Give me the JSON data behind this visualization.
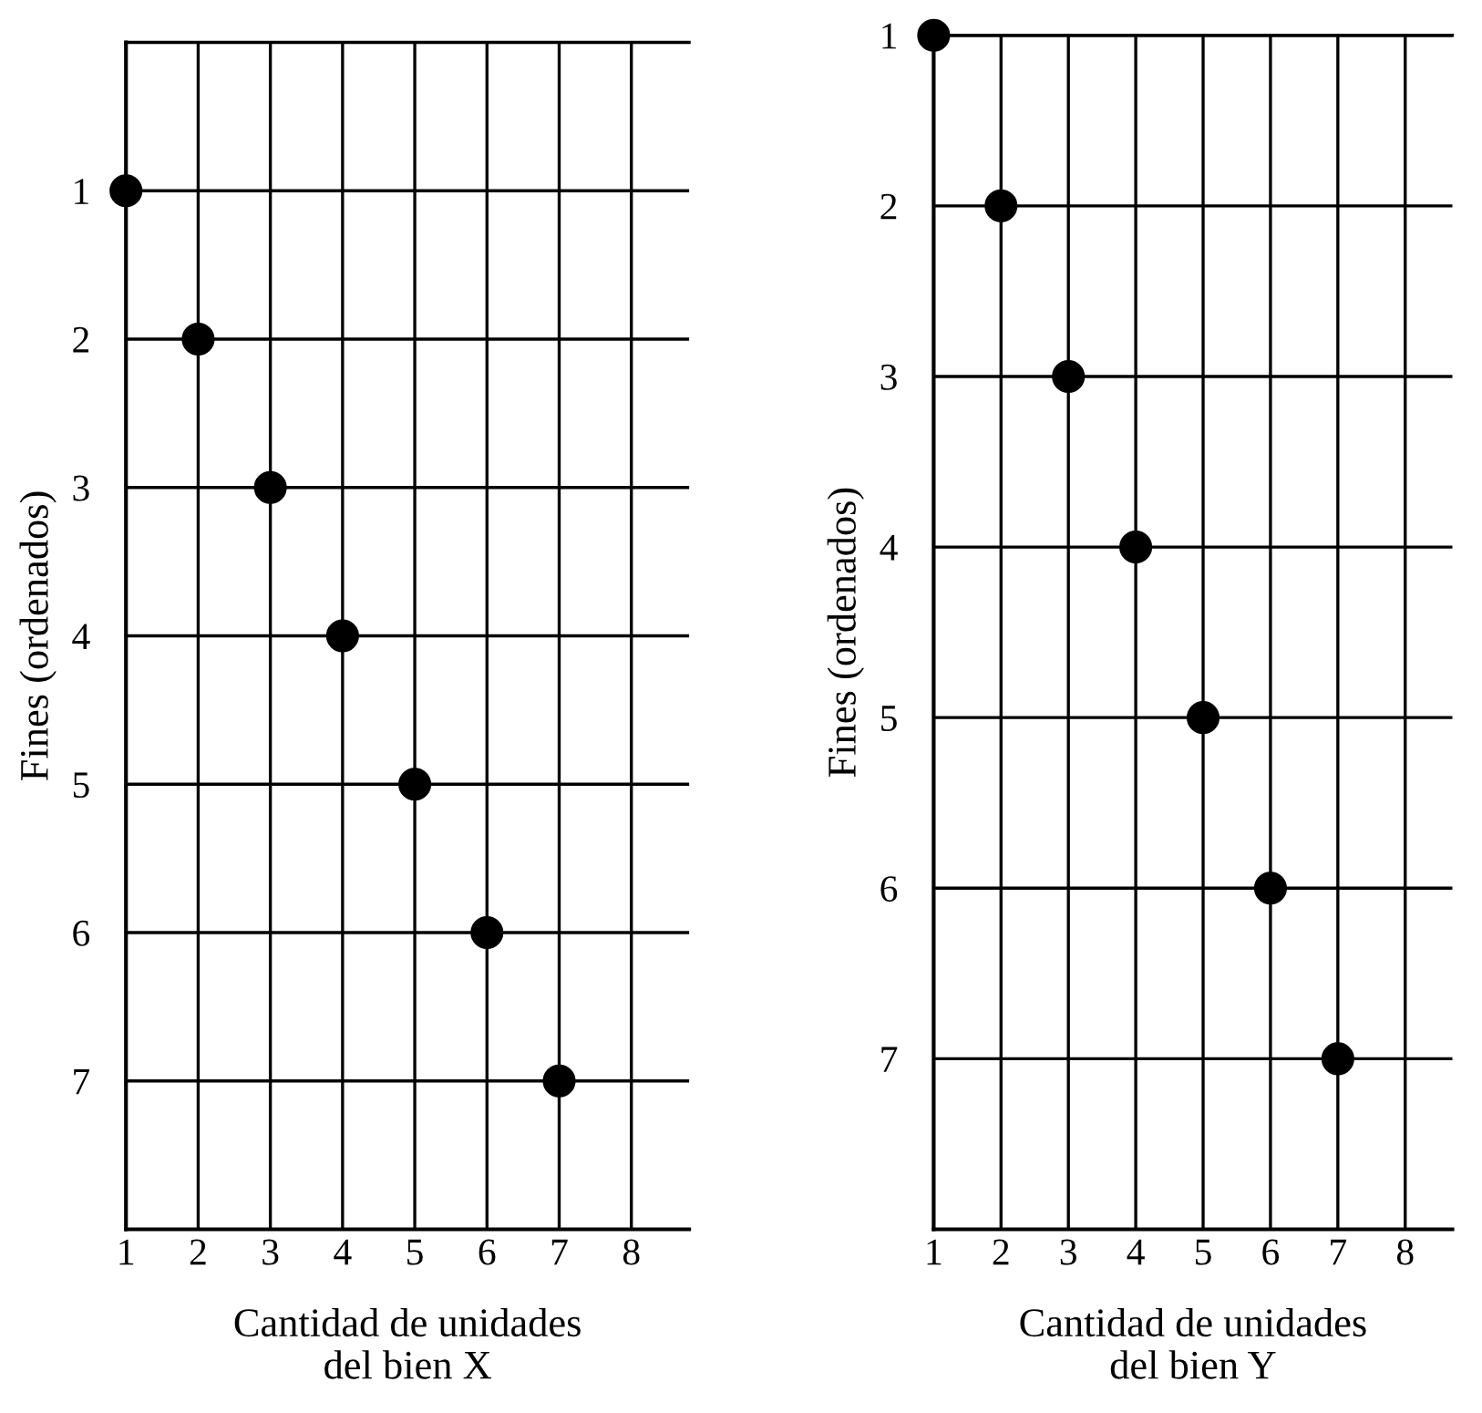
{
  "chart_data": [
    {
      "type": "scatter",
      "xlabel": "Cantidad de unidades\ndel bien X",
      "ylabel": "Fines (ordenados)",
      "x": [
        1,
        2,
        3,
        4,
        5,
        6,
        7
      ],
      "series": [
        {
          "color": "#000000",
          "values": [
            1,
            2,
            3,
            4,
            5,
            6,
            7
          ]
        }
      ],
      "marker": "circle",
      "grid": true,
      "legend": false,
      "xlim": [
        1,
        8.8
      ],
      "xticks": [
        1,
        2,
        3,
        4,
        5,
        6,
        7,
        8
      ],
      "ylim": [
        8,
        0
      ],
      "yticks": [
        1,
        2,
        3,
        4,
        5,
        6,
        7
      ]
    },
    {
      "type": "scatter",
      "xlabel": "Cantidad de unidades\ndel bien Y",
      "ylabel": "Fines (ordenados)",
      "x": [
        1,
        2,
        3,
        4,
        5,
        6,
        7
      ],
      "series": [
        {
          "color": "#000000",
          "values": [
            1,
            2,
            3,
            4,
            5,
            6,
            7
          ]
        }
      ],
      "marker": "circle",
      "grid": true,
      "legend": false,
      "xlim": [
        1,
        8.7
      ],
      "xticks": [
        1,
        2,
        3,
        4,
        5,
        6,
        7,
        8
      ],
      "ylim": [
        8,
        1
      ],
      "yticks": [
        1,
        2,
        3,
        4,
        5,
        6,
        7
      ]
    }
  ]
}
